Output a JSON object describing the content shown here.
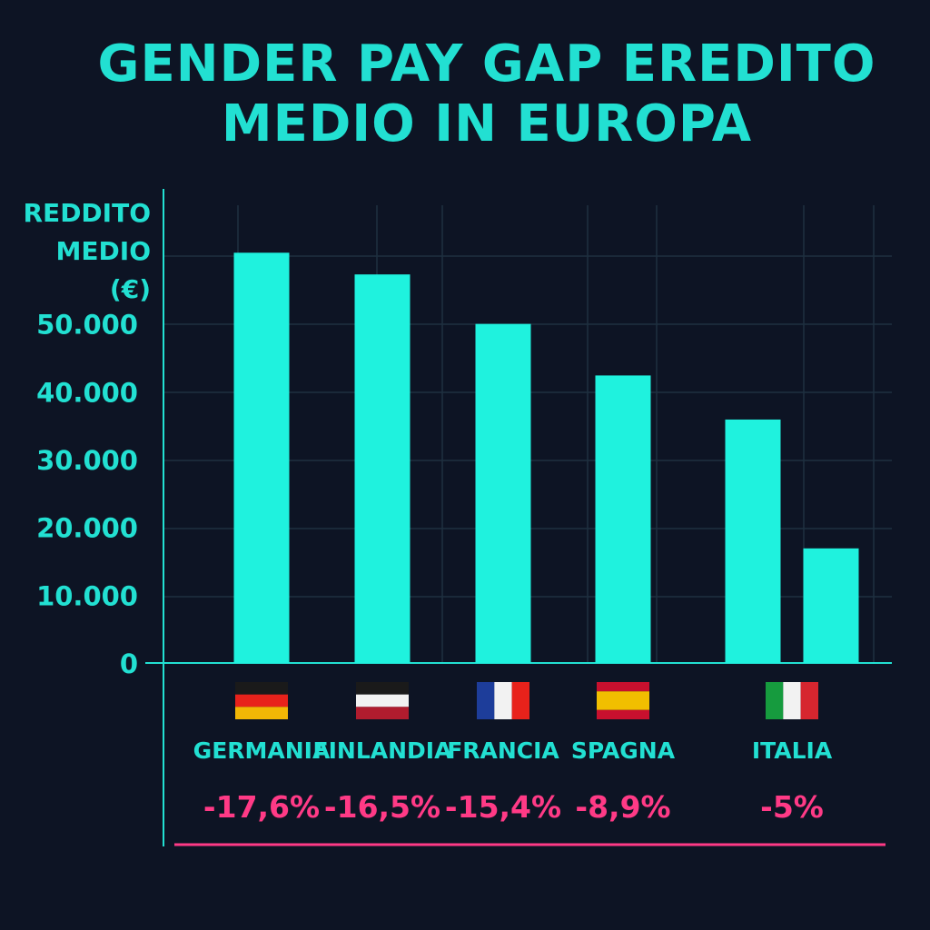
{
  "title": {
    "line1": "GENDER PAY GAP EREDITO",
    "line2": "MEDIO IN EUROPA"
  },
  "chart_data": {
    "type": "bar",
    "ylabel": [
      "REDDITO",
      "MEDIO",
      "(€)"
    ],
    "ylim": [
      0,
      60000
    ],
    "yticks": [
      0,
      10000,
      20000,
      30000,
      40000,
      50000
    ],
    "ytick_labels": [
      "0",
      "10.000",
      "20.000",
      "30.000",
      "40.000",
      "50.000"
    ],
    "grid": true,
    "countries": [
      {
        "name": "GERMANIA",
        "gap": "-17,6%",
        "flag": "flag-germany",
        "colors": [
          "#1a1a1a",
          "#e8221b",
          "#f2b705"
        ],
        "bars": [
          60500
        ]
      },
      {
        "name": "FINLANDIA",
        "gap": "-16,5%",
        "flag": "flag-finlandia",
        "colors": [
          "#1a1a1a",
          "#f2f2f2",
          "#b01c2e"
        ],
        "bars": [
          57300
        ]
      },
      {
        "name": "FRANCIA",
        "gap": "-15,4%",
        "flag": "flag-france",
        "colors": [
          "#1d3d9a",
          "#f2f2f2",
          "#e8221b"
        ],
        "bars": [
          50000
        ]
      },
      {
        "name": "SPAGNA",
        "gap": "-8,9%",
        "flag": "flag-spain",
        "colors": [
          "#c8102e",
          "#f1bf00",
          "#c8102e"
        ],
        "bars": [
          42400
        ]
      },
      {
        "name": "ITALIA",
        "gap": "-5%",
        "flag": "flag-italy",
        "colors": [
          "#169b3e",
          "#f2f2f2",
          "#d6262f"
        ],
        "bars": [
          35900,
          16900
        ]
      }
    ],
    "colors": {
      "bar": "#1ff2de",
      "axis": "#22e0d2",
      "grid": "#1e3040",
      "gap_text": "#ff3a86",
      "underline": "#ff3a86"
    }
  }
}
